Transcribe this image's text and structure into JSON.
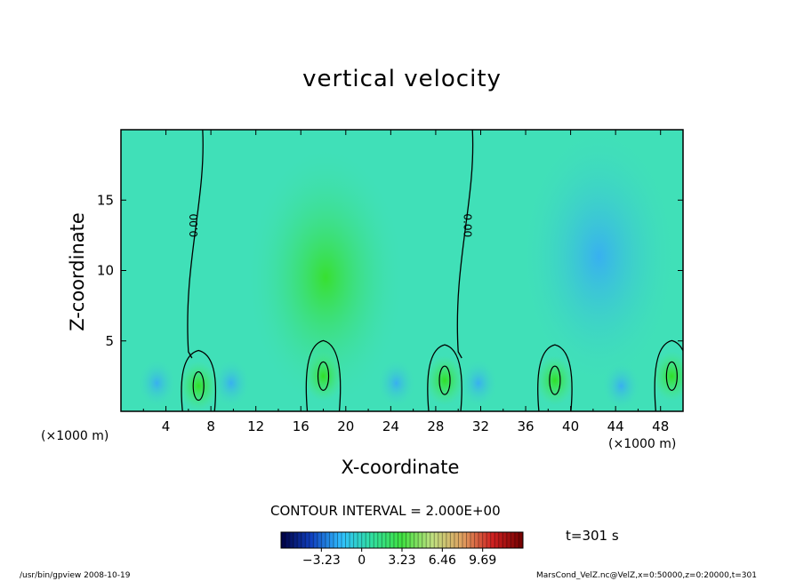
{
  "chart_data": {
    "type": "heatmap",
    "title": "vertical velocity",
    "xlabel": "X-coordinate",
    "ylabel": "Z-coordinate",
    "x_unit": "(×1000 m)",
    "y_unit": "",
    "xlim": [
      0,
      50
    ],
    "ylim": [
      0,
      20
    ],
    "x_ticks": [
      4,
      8,
      12,
      16,
      20,
      24,
      28,
      32,
      36,
      40,
      44,
      48
    ],
    "y_ticks": [
      5,
      10,
      15
    ],
    "contour_label": "0.00",
    "contour_interval": "CONTOUR INTERVAL = 2.000E+00",
    "colorbar_ticks": [
      "−3.23",
      "0",
      "3.23",
      "6.46",
      "9.69"
    ],
    "colorbar_values": [
      -3.23,
      0,
      3.23,
      6.46,
      9.69
    ],
    "colorbar_range": [
      -6.46,
      12.92
    ],
    "time_label": "t=301 s",
    "colormap": [
      "#000040",
      "#1040c0",
      "#30c0ff",
      "#30e0a0",
      "#40e040",
      "#c0e080",
      "#e0a060",
      "#d02020",
      "#700000"
    ],
    "features": [
      {
        "kind": "updraft",
        "x": 18.2,
        "z": 9.5,
        "intensity": "moderate"
      },
      {
        "kind": "updraft",
        "x": 6.9,
        "z": 1.8,
        "intensity": "strong"
      },
      {
        "kind": "updraft",
        "x": 18.0,
        "z": 2.5,
        "intensity": "strong"
      },
      {
        "kind": "updraft",
        "x": 28.8,
        "z": 2.2,
        "intensity": "strong"
      },
      {
        "kind": "updraft",
        "x": 38.6,
        "z": 2.2,
        "intensity": "strong"
      },
      {
        "kind": "updraft",
        "x": 49.0,
        "z": 2.5,
        "intensity": "strong"
      },
      {
        "kind": "downdraft",
        "x": 42.5,
        "z": 11.0,
        "intensity": "moderate"
      },
      {
        "kind": "downdraft",
        "x": 3.2,
        "z": 2.0,
        "intensity": "moderate"
      },
      {
        "kind": "downdraft",
        "x": 9.8,
        "z": 2.0,
        "intensity": "moderate"
      },
      {
        "kind": "downdraft",
        "x": 24.5,
        "z": 2.0,
        "intensity": "moderate"
      },
      {
        "kind": "downdraft",
        "x": 31.8,
        "z": 2.0,
        "intensity": "moderate"
      },
      {
        "kind": "downdraft",
        "x": 44.5,
        "z": 1.8,
        "intensity": "moderate"
      }
    ]
  },
  "footer": {
    "left": "/usr/bin/gpview   2008-10-19",
    "right": "MarsCond_VelZ.nc@VelZ,x=0:50000,z=0:20000,t=301"
  }
}
